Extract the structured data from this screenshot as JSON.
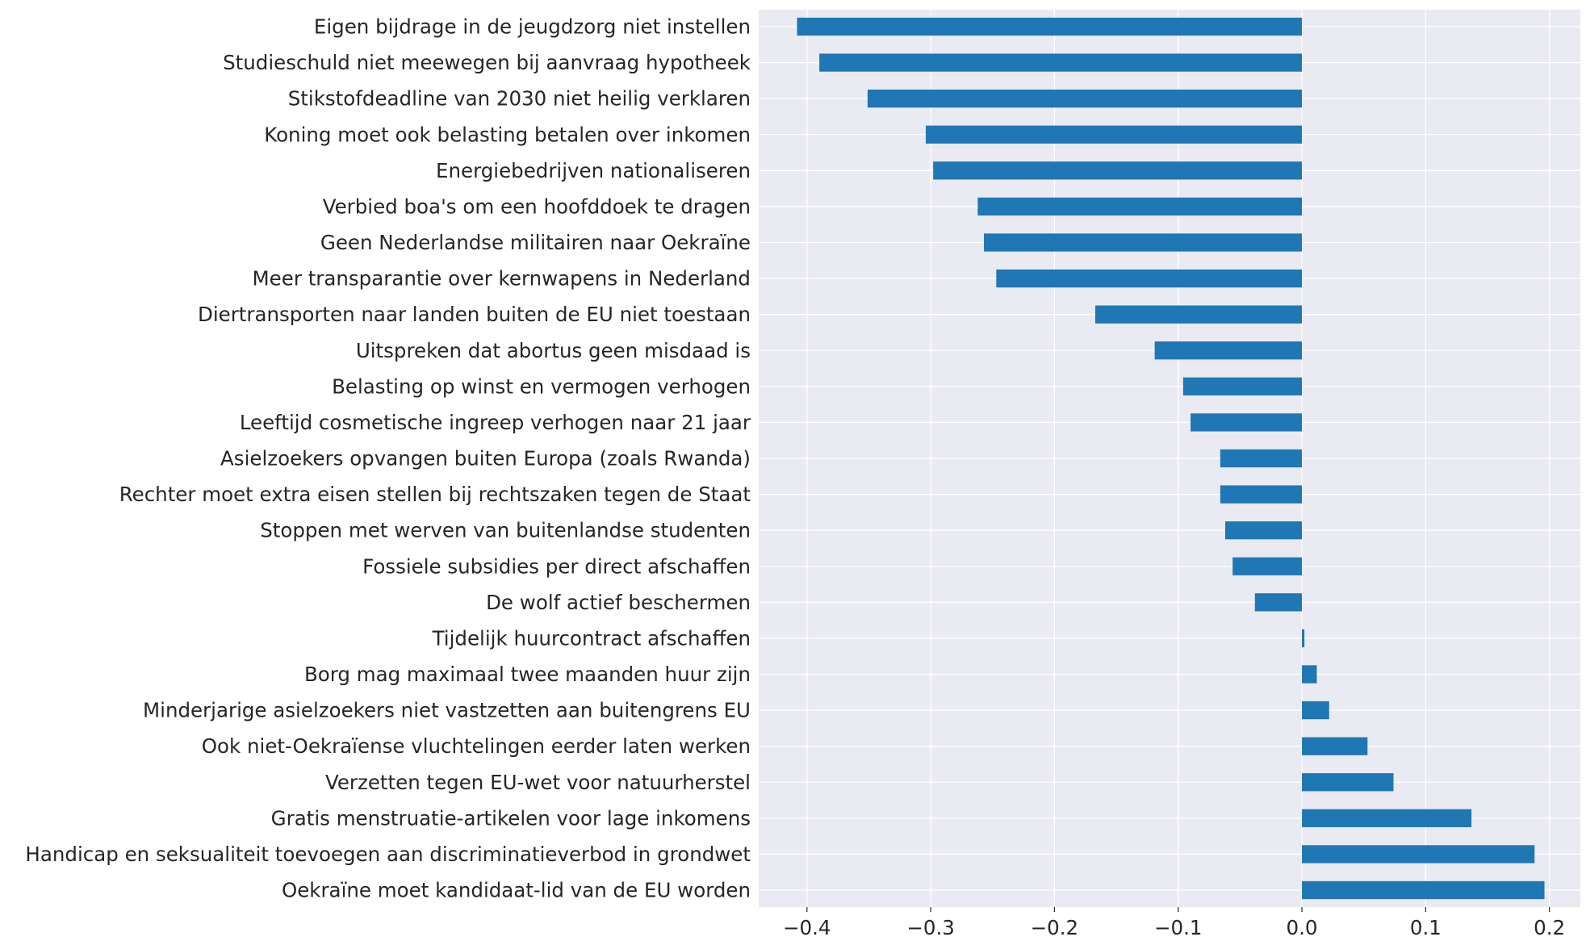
{
  "chart_data": {
    "type": "bar",
    "orientation": "horizontal",
    "categories": [
      "Eigen bijdrage in de jeugdzorg niet instellen",
      "Studieschuld niet meewegen bij aanvraag hypotheek",
      "Stikstofdeadline van 2030 niet heilig verklaren",
      "Koning moet ook belasting betalen over inkomen",
      "Energiebedrijven nationaliseren",
      "Verbied boa's om een hoofddoek te dragen",
      "Geen Nederlandse militairen naar Oekraïne",
      "Meer transparantie over kernwapens in Nederland",
      "Diertransporten naar landen buiten de EU niet toestaan",
      "Uitspreken dat abortus geen misdaad is",
      "Belasting op winst en vermogen verhogen",
      "Leeftijd cosmetische ingreep verhogen naar 21 jaar",
      "Asielzoekers opvangen buiten Europa (zoals Rwanda)",
      "Rechter moet extra eisen stellen bij rechtszaken tegen de Staat",
      "Stoppen met werven van buitenlandse studenten",
      "Fossiele subsidies per direct afschaffen",
      "De wolf actief beschermen",
      "Tijdelijk huurcontract afschaffen",
      "Borg mag maximaal twee maanden huur zijn",
      "Minderjarige asielzoekers niet vastzetten aan buitengrens EU",
      "Ook niet-Oekraïense vluchtelingen eerder laten werken",
      "Verzetten tegen EU-wet voor natuurherstel",
      "Gratis menstruatie-artikelen voor lage inkomens",
      "Handicap en seksualiteit toevoegen aan discriminatieverbod in grondwet",
      "Oekraïne moet kandidaat-lid van de EU worden"
    ],
    "values": [
      -0.408,
      -0.39,
      -0.351,
      -0.304,
      -0.298,
      -0.262,
      -0.257,
      -0.247,
      -0.167,
      -0.119,
      -0.096,
      -0.09,
      -0.066,
      -0.066,
      -0.062,
      -0.056,
      -0.038,
      0.002,
      0.012,
      0.022,
      0.053,
      0.074,
      0.137,
      0.188,
      0.196
    ],
    "xlim": [
      -0.439,
      0.225
    ],
    "xticks": [
      -0.4,
      -0.3,
      -0.2,
      -0.1,
      0.0,
      0.1,
      0.2
    ],
    "xtick_labels": [
      "−0.4",
      "−0.3",
      "−0.2",
      "−0.1",
      "0.0",
      "0.1",
      "0.2"
    ],
    "bar_color": "#1f77b4",
    "grid": true,
    "title": "",
    "xlabel": "",
    "ylabel": ""
  }
}
